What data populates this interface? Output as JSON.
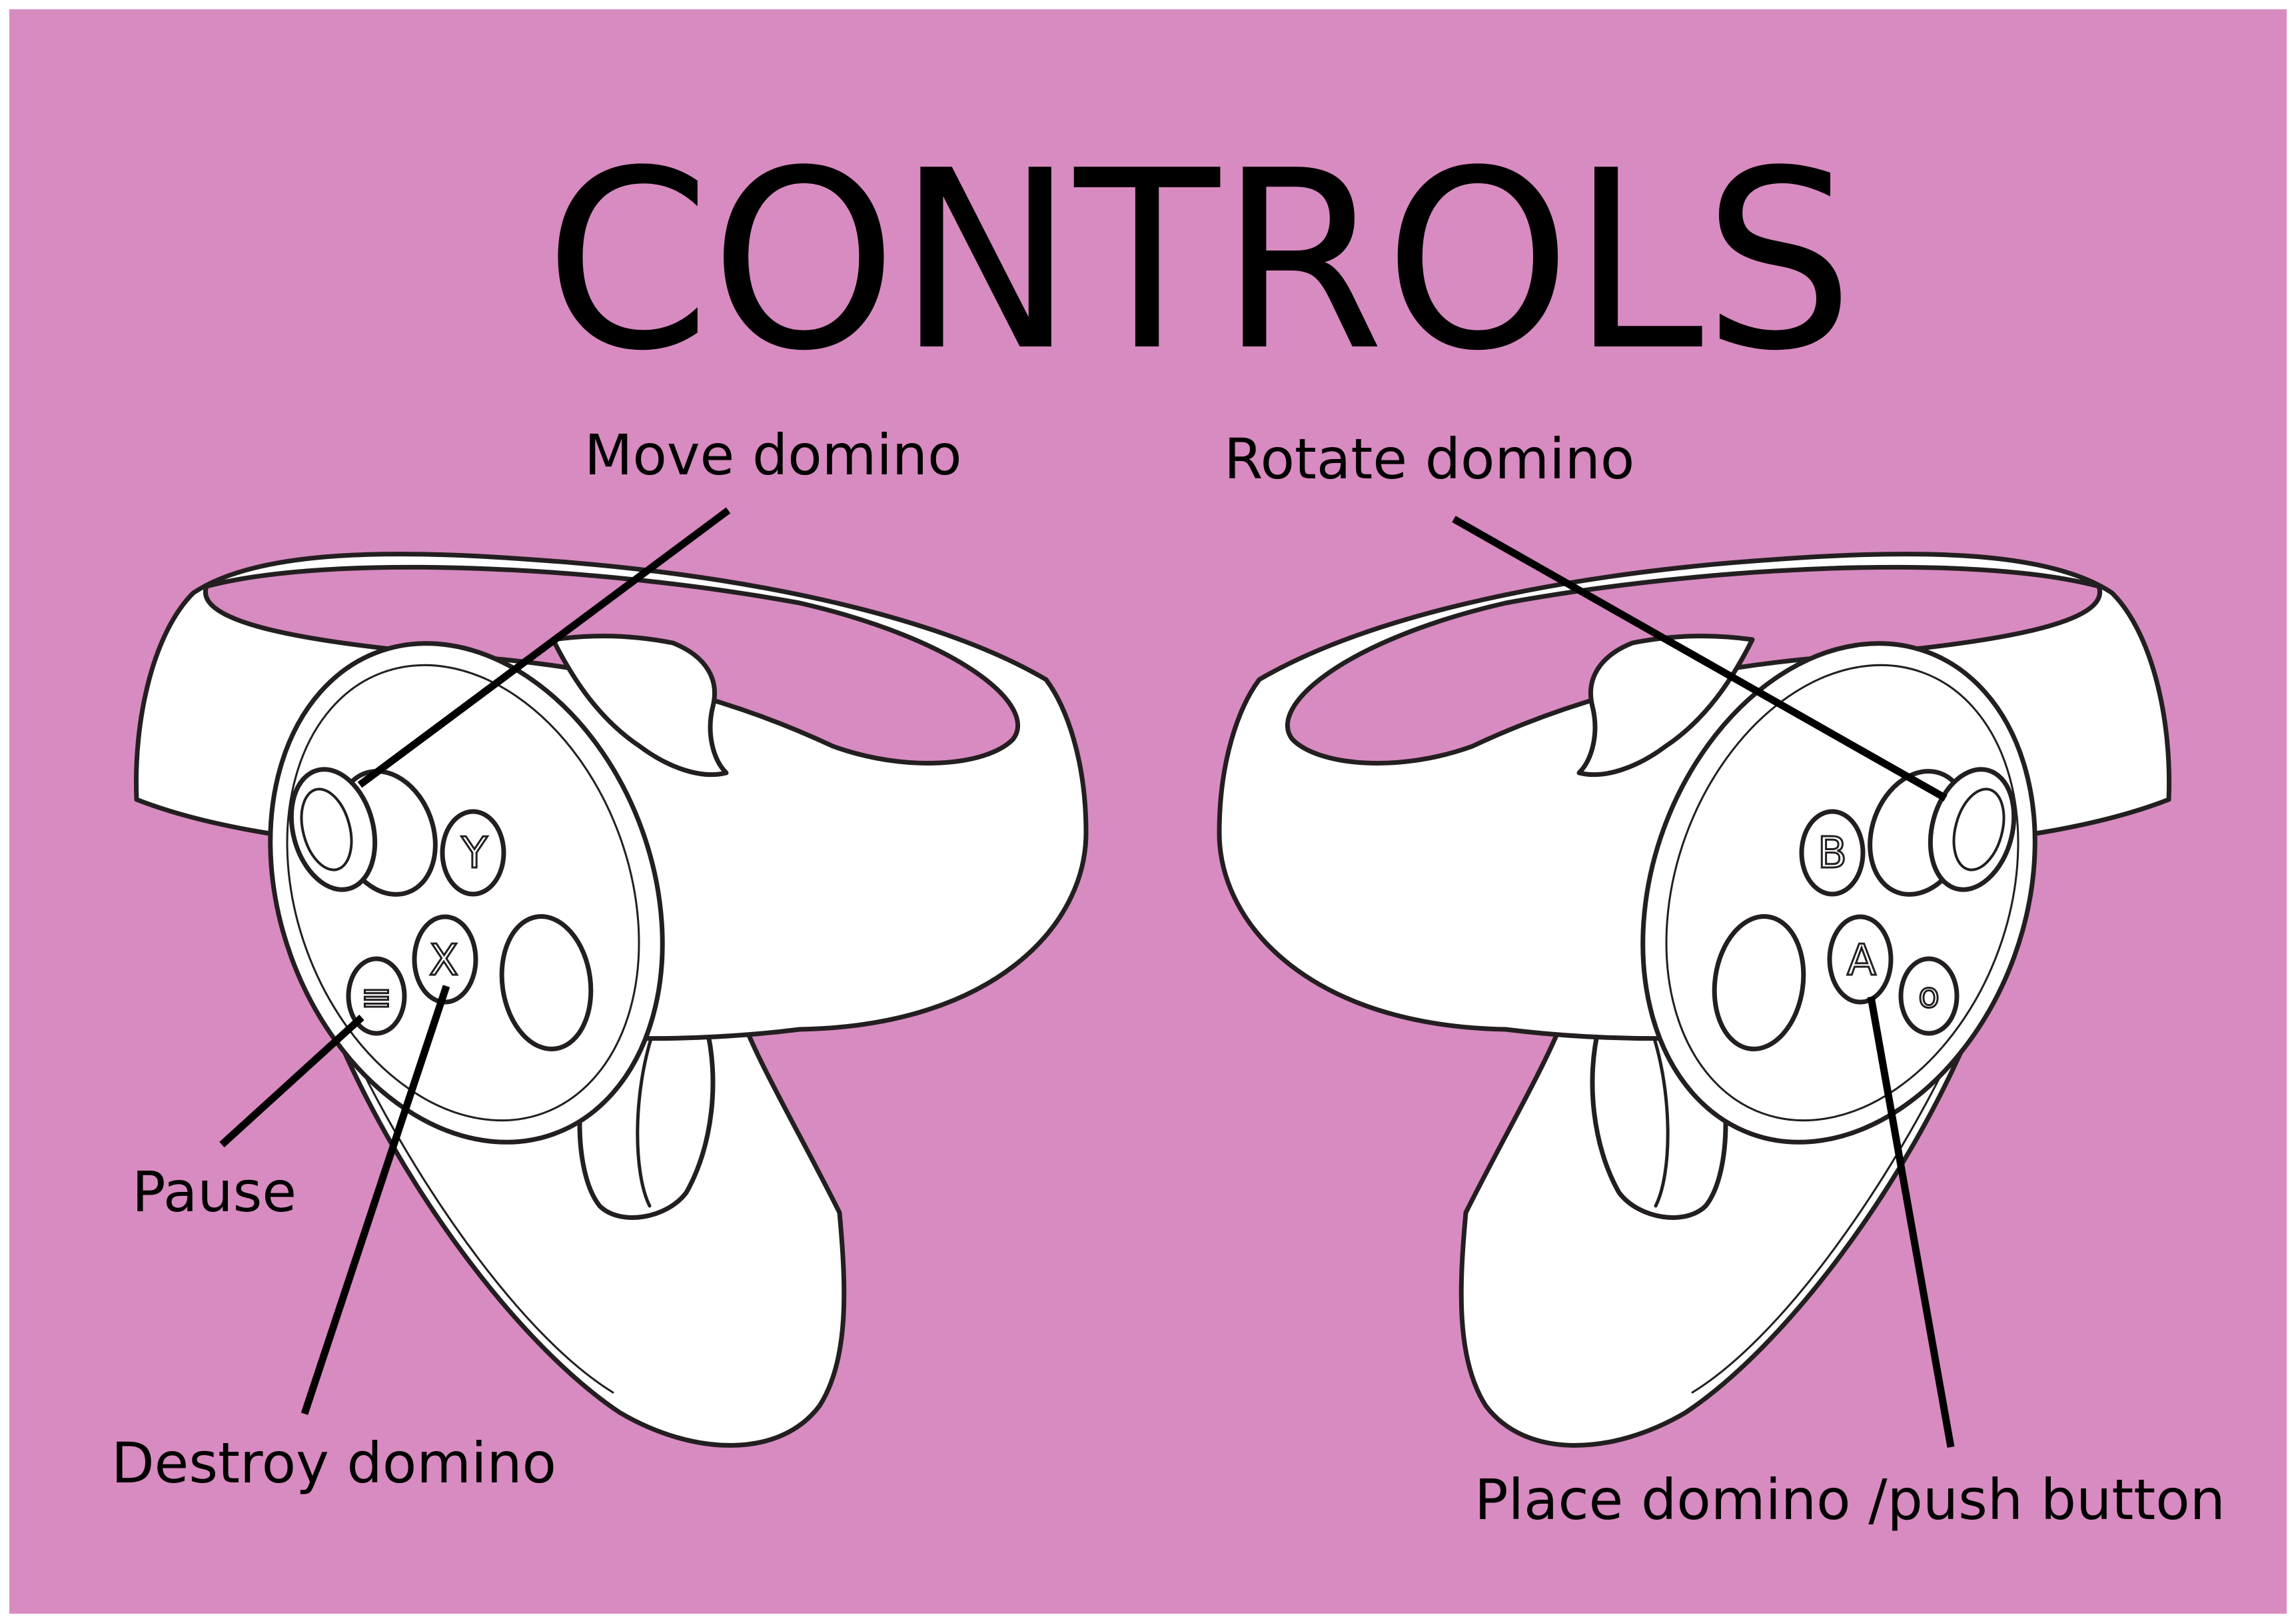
{
  "title": "CONTROLS",
  "labels": {
    "move_domino": "Move domino",
    "rotate_domino": "Rotate domino",
    "pause": "Pause",
    "destroy_domino": "Destroy domino",
    "place_domino": "Place domino /push button"
  },
  "left_controller": {
    "buttons": {
      "y": "Y",
      "x": "X",
      "menu": "≡"
    }
  },
  "right_controller": {
    "buttons": {
      "b": "B",
      "a": "A",
      "oculus": "o"
    }
  },
  "colors": {
    "background": "#d88bc0",
    "border": "#ffffff",
    "controller_fill": "#ffffff",
    "outline": "#231f20",
    "leader_line": "#000000",
    "text": "#000000"
  }
}
